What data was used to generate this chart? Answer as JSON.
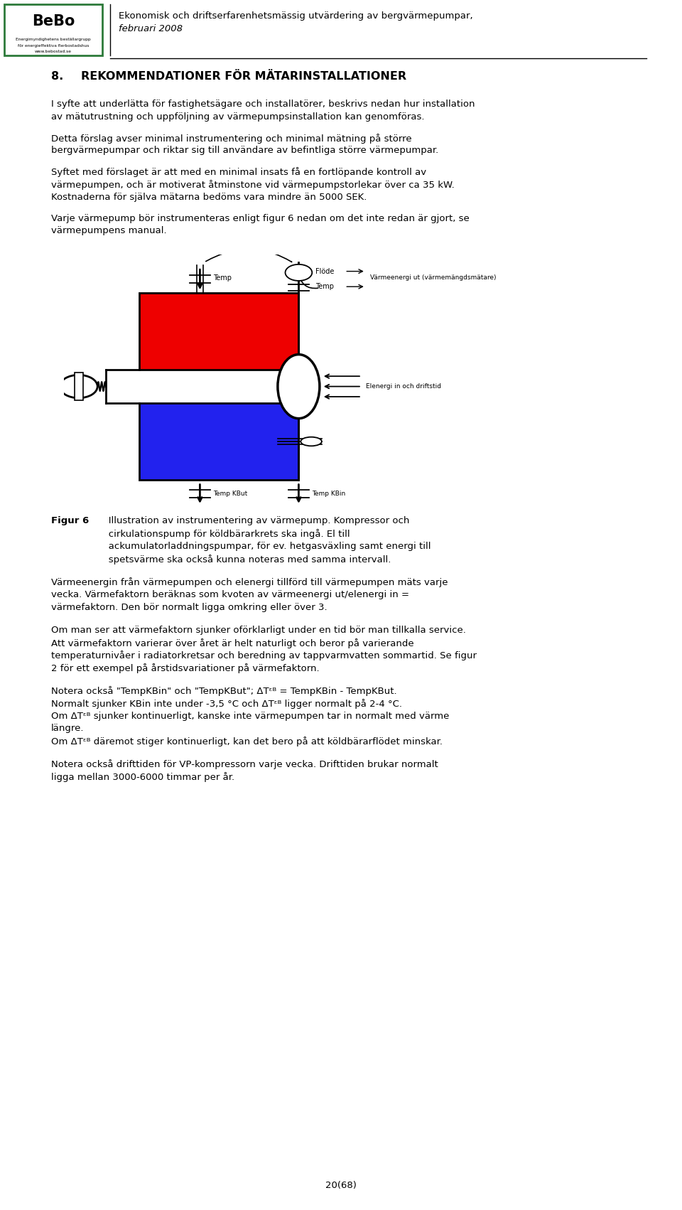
{
  "bg_color": "#ffffff",
  "page_width": 9.6,
  "page_height": 17.02,
  "dpi": 100,
  "logo_bebo": "BeBo",
  "logo_sub1": "Energimyndighetens beställargrupp",
  "logo_sub2": "för energieffektiva flerbostadshus",
  "logo_sub3": "www.bebostad.se",
  "header_line1": "Ekonomisk och driftserfarenhetsmässig utvärdering av bergvärmepumpar,",
  "header_line2": "februari 2008",
  "section_num": "8.",
  "section_title": "REKOMMENDATIONER FÖR MÄTARINSTALLATIONER",
  "para1": "I syfte att underlätta för fastighetsägare och installatörer, beskrivs nedan hur installation\nav mätutrustning och uppföljning av värmepumpsinstallation kan genomföras.",
  "para2": "Detta förslag avser minimal instrumentering och minimal mätning på större\nbergvärmepumpar och riktar sig till användare av befintliga större värmepumpar.",
  "para3_line1": "Syftet med förslaget är att med en minimal insats få en fortlöpande kontroll av",
  "para3_line2": "värmepumpen, och är motiverat åtminstone vid värmepumpstorlekar över ca 35 kW.",
  "para3_line3": "Kostnaderna för själva mätarna bedöms vara mindre än 5000 SEK.",
  "para4_line1": "Varje värmepump bör instrumenteras enligt figur 6 nedan om det inte redan är gjort, se",
  "para4_line2": "värmepumpens manual.",
  "fig6_bold": "Figur 6",
  "fig6_cap1": "   Illustration av instrumentering av värmepump. Kompressor och",
  "fig6_cap2": "   cirkulationspump för köldbärarkrets ska ingå. El till",
  "fig6_cap3": "   ackumulatorladdningspumpar, för ev. hetgasväxling samt energi till",
  "fig6_cap4": "   spetsvärme ska också kunna noteras med samma intervall.",
  "para5_line1": "Värmeenergin från värmepumpen och elenergi tillförd till värmepumpen mäts varje",
  "para5_line2": "vecka. Värmefaktorn beräknas som kvoten av värmeenergi ut/elenergi in =",
  "para5_line3": "värmefaktorn. Den bör normalt ligga omkring eller över 3.",
  "para6_line1": "Om man ser att värmefaktorn sjunker oförklarligt under en tid bör man tillkalla service.",
  "para6_line2": "Att värmefaktorn varierar över året är helt naturligt och beror på varierande",
  "para6_line3": "temperaturnivåer i radiatorkretsar och beredning av tappvarmvatten sommartid. Se figur",
  "para6_line4": "2 för ett exempel på årstidsvariationer på värmefaktorn.",
  "para7_line1": "Notera också \"TempKBin\" och \"TempKBut\"; ΔTᵋᴮ = TempKBin - TempKBut.",
  "para7_line2": "Normalt sjunker KBin inte under -3,5 °C och ΔTᵋᴮ ligger normalt på 2-4 °C.",
  "para7_line3": "Om ΔTᵋᴮ sjunker kontinuerligt, kanske inte värmepumpen tar in normalt med värme",
  "para7_line4": "längre.",
  "para7_line5": "Om ΔTᵋᴮ däremot stiger kontinuerligt, kan det bero på att köldbärarflödet minskar.",
  "para8_line1": "Notera också drifttiden för VP-kompressorn varje vecka. Drifttiden brukar normalt",
  "para8_line2": "ligga mellan 3000-6000 timmar per år.",
  "footer": "20(68)",
  "lm_inch": 0.72,
  "rm_inch": 9.1,
  "fs_body": 9.5,
  "fs_header": 9.5,
  "fs_section": 11.5,
  "lh_inch": 0.178
}
